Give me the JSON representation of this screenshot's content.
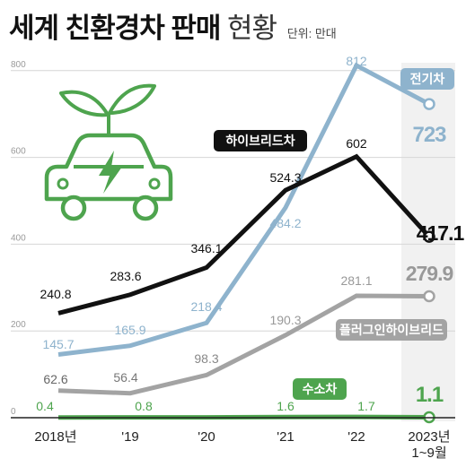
{
  "header": {
    "title_bold": "세계 친환경차 판매",
    "title_light": "현황",
    "unit": "단위: 만대"
  },
  "colors": {
    "ev": "#8eb3cd",
    "hybrid": "#111111",
    "plugin": "#a3a3a3",
    "hydrogen": "#4ea44e",
    "grid": "#d6d6d6",
    "highlight": "#f1f1f1"
  },
  "icon": "green-car-with-sprout-and-lightning-icon",
  "chart_data": {
    "type": "line",
    "title": "세계 친환경차 판매 현황",
    "unit": "단위: 만대",
    "categories": [
      "2018년",
      "'19",
      "'20",
      "'21",
      "'22",
      "2023년 1~9월"
    ],
    "x_tick_lines": [
      [
        "2018년"
      ],
      [
        "'19"
      ],
      [
        "'20"
      ],
      [
        "'21"
      ],
      [
        "'22"
      ],
      [
        "2023년",
        "1~9월"
      ]
    ],
    "ylim": [
      0,
      900
    ],
    "yticks": [
      0,
      200,
      400,
      600,
      800
    ],
    "grid": true,
    "series": [
      {
        "name": "전기차",
        "values": [
          145.7,
          165.9,
          218.4,
          484.2,
          812,
          723
        ],
        "labels": [
          "145.7",
          "165.9",
          "218.4",
          "484.2",
          "812",
          "723"
        ]
      },
      {
        "name": "하이브리드차",
        "values": [
          240.8,
          283.6,
          346.1,
          524.3,
          602,
          417.1
        ],
        "labels": [
          "240.8",
          "283.6",
          "346.1",
          "524.3",
          "602",
          "417.1"
        ]
      },
      {
        "name": "플러그인하이브리드",
        "values": [
          62.6,
          56.4,
          98.3,
          190.3,
          281.1,
          279.9
        ],
        "labels": [
          "62.6",
          "56.4",
          "98.3",
          "190.3",
          "281.1",
          "279.9"
        ]
      },
      {
        "name": "수소차",
        "values": [
          0.4,
          0.8,
          0.8,
          1.6,
          1.7,
          1.1
        ],
        "labels": [
          "0.4",
          "0.8",
          "",
          "1.6",
          "1.7",
          "1.1"
        ]
      }
    ]
  }
}
